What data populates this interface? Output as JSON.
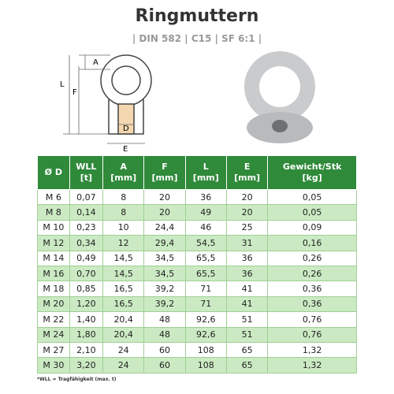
{
  "header": {
    "title": "Ringmuttern",
    "subtitle": "| DIN 582 | C15 | SF 6:1 |"
  },
  "diagram": {
    "labels": [
      "A",
      "L",
      "F",
      "D",
      "E"
    ]
  },
  "table": {
    "columns": [
      {
        "name": "Ø D"
      },
      {
        "name": "WLL",
        "unit": "[t]"
      },
      {
        "name": "A",
        "unit": "[mm]"
      },
      {
        "name": "F",
        "unit": "[mm]"
      },
      {
        "name": "L",
        "unit": "[mm]"
      },
      {
        "name": "E",
        "unit": "[mm]"
      },
      {
        "name": "Gewicht/Stk",
        "unit": "[kg]"
      }
    ],
    "rows": [
      [
        "M 6",
        "0,07",
        "8",
        "20",
        "36",
        "20",
        "0,05"
      ],
      [
        "M 8",
        "0,14",
        "8",
        "20",
        "49",
        "20",
        "0,05"
      ],
      [
        "M 10",
        "0,23",
        "10",
        "24,4",
        "46",
        "25",
        "0,09"
      ],
      [
        "M 12",
        "0,34",
        "12",
        "29,4",
        "54,5",
        "31",
        "0,16"
      ],
      [
        "M 14",
        "0,49",
        "14,5",
        "34,5",
        "65,5",
        "36",
        "0,26"
      ],
      [
        "M 16",
        "0,70",
        "14,5",
        "34,5",
        "65,5",
        "36",
        "0,26"
      ],
      [
        "M 18",
        "0,85",
        "16,5",
        "39,2",
        "71",
        "41",
        "0,36"
      ],
      [
        "M 20",
        "1,20",
        "16,5",
        "39,2",
        "71",
        "41",
        "0,36"
      ],
      [
        "M 22",
        "1,40",
        "20,4",
        "48",
        "92,6",
        "51",
        "0,76"
      ],
      [
        "M 24",
        "1,80",
        "20,4",
        "48",
        "92,6",
        "51",
        "0,76"
      ],
      [
        "M 27",
        "2,10",
        "24",
        "60",
        "108",
        "65",
        "1,32"
      ],
      [
        "M 30",
        "3,20",
        "24",
        "60",
        "108",
        "65",
        "1,32"
      ]
    ]
  },
  "footnote": "*WLL = Tragfähigkeit (max. t)"
}
